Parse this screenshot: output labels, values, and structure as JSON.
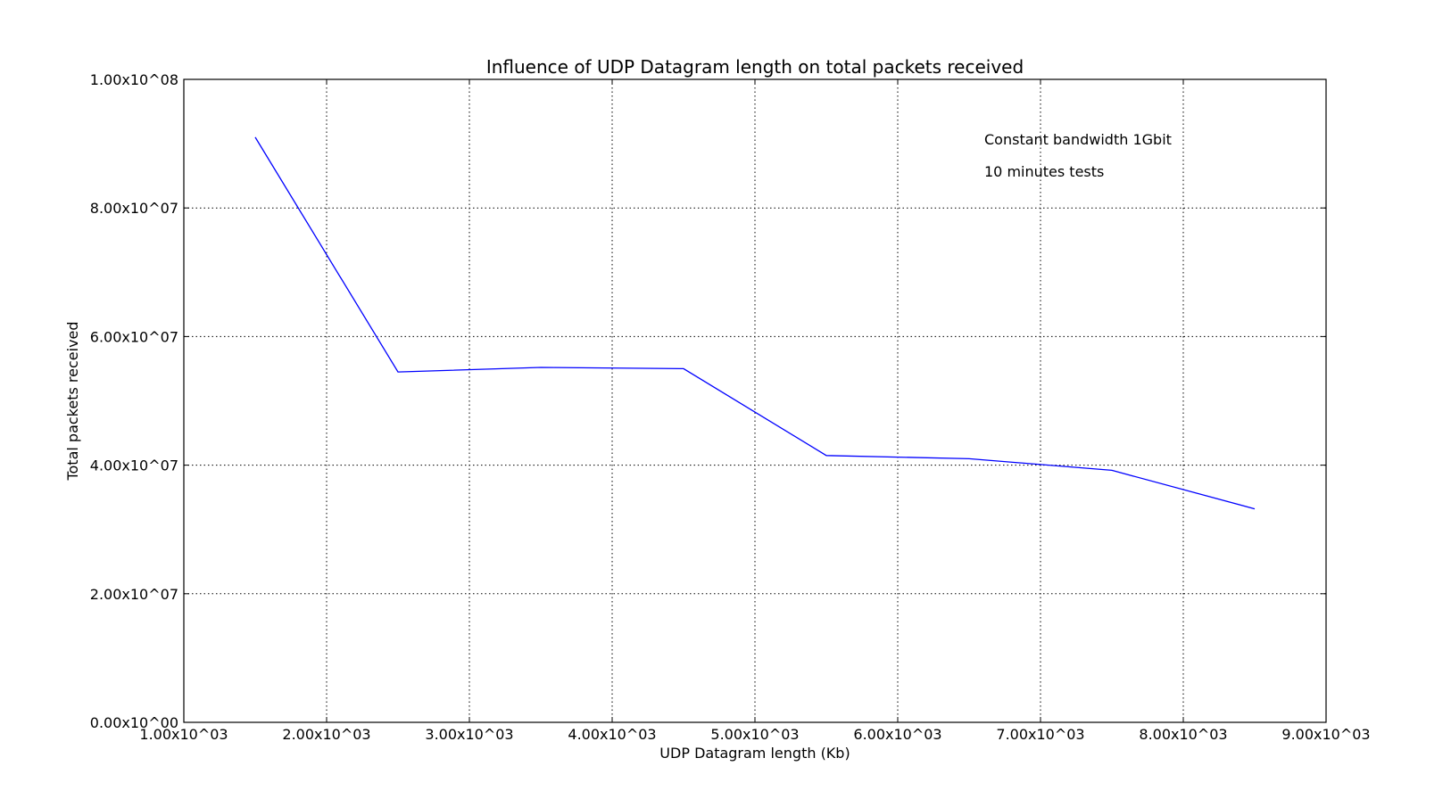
{
  "chart_data": {
    "type": "line",
    "title": "Influence of UDP Datagram length on total packets received",
    "xlabel": "UDP Datagram length (Kb)",
    "ylabel": "Total packets received",
    "xlim": [
      1000,
      9000
    ],
    "ylim": [
      0,
      100000000
    ],
    "x_ticks": [
      1000,
      2000,
      3000,
      4000,
      5000,
      6000,
      7000,
      8000,
      9000
    ],
    "x_tick_labels": [
      "1.00x10^03",
      "2.00x10^03",
      "3.00x10^03",
      "4.00x10^03",
      "5.00x10^03",
      "6.00x10^03",
      "7.00x10^03",
      "8.00x10^03",
      "9.00x10^03"
    ],
    "y_ticks": [
      0,
      20000000,
      40000000,
      60000000,
      80000000,
      100000000
    ],
    "y_tick_labels": [
      "0.00x10^00",
      "2.00x10^07",
      "4.00x10^07",
      "6.00x10^07",
      "8.00x10^07",
      "1.00x10^08"
    ],
    "grid": true,
    "series": [
      {
        "color": "#0000ff",
        "x": [
          1500,
          2500,
          3500,
          4500,
          5500,
          6500,
          7500,
          8500
        ],
        "y": [
          91000000,
          54500000,
          55200000,
          55000000,
          41500000,
          41000000,
          39200000,
          33200000
        ]
      }
    ],
    "annotations": [
      "Constant bandwidth 1Gbit",
      "10 minutes tests"
    ]
  }
}
